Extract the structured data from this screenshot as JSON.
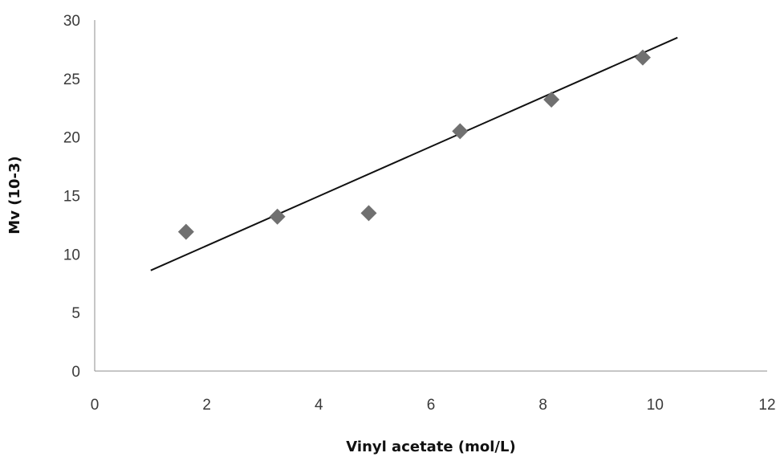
{
  "chart_data": {
    "type": "scatter",
    "title": "",
    "xlabel": "Vinyl acetate (mol/L)",
    "ylabel": "Mv (10-3)",
    "xlim": [
      0,
      12
    ],
    "ylim": [
      0,
      30
    ],
    "xticks": [
      "0",
      "2",
      "4",
      "6",
      "8",
      "10",
      "12"
    ],
    "yticks": [
      "0",
      "5",
      "10",
      "15",
      "20",
      "25",
      "30"
    ],
    "grid": false,
    "legend": "none",
    "series": [
      {
        "marker": "diamond",
        "color": "#707070",
        "x": [
          1.63,
          3.26,
          4.89,
          6.52,
          8.15,
          9.78
        ],
        "y": [
          11.9,
          13.2,
          13.5,
          20.5,
          23.2,
          26.8
        ]
      }
    ],
    "trendline": {
      "type": "linear",
      "color": "#111111",
      "x": [
        1.0,
        10.4
      ],
      "y": [
        8.6,
        28.5
      ]
    }
  }
}
